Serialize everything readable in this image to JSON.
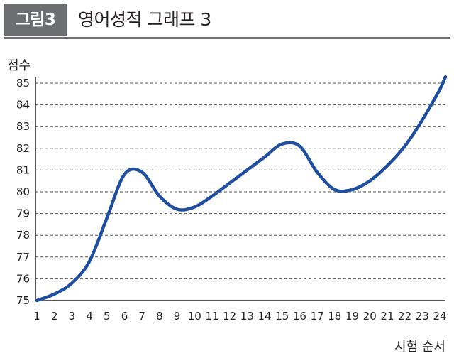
{
  "header": {
    "badge": "그림3",
    "title": "영어성적 그래프 3"
  },
  "chart_data": {
    "type": "line",
    "title": "영어성적 그래프 3",
    "xlabel": "시험 순서",
    "ylabel": "점수",
    "x": [
      1,
      2,
      3,
      4,
      5,
      6,
      7,
      8,
      9,
      10,
      11,
      12,
      13,
      14,
      15,
      16,
      17,
      18,
      19,
      20,
      21,
      22,
      23,
      24
    ],
    "series": [
      {
        "values": [
          75,
          75.3,
          75.8,
          76.8,
          78.8,
          80.8,
          80.9,
          79.8,
          79.2,
          79.3,
          79.8,
          80.4,
          81.0,
          81.6,
          82.2,
          82.1,
          80.9,
          80.1,
          80.1,
          80.5,
          81.2,
          82.1,
          83.3,
          84.7
        ]
      }
    ],
    "ylim": [
      75,
      85
    ],
    "yticks": [
      75,
      76,
      77,
      78,
      79,
      80,
      81,
      82,
      83,
      84,
      85
    ],
    "grid": "horizontal-dashed",
    "line_color": "#1f4fa0"
  }
}
